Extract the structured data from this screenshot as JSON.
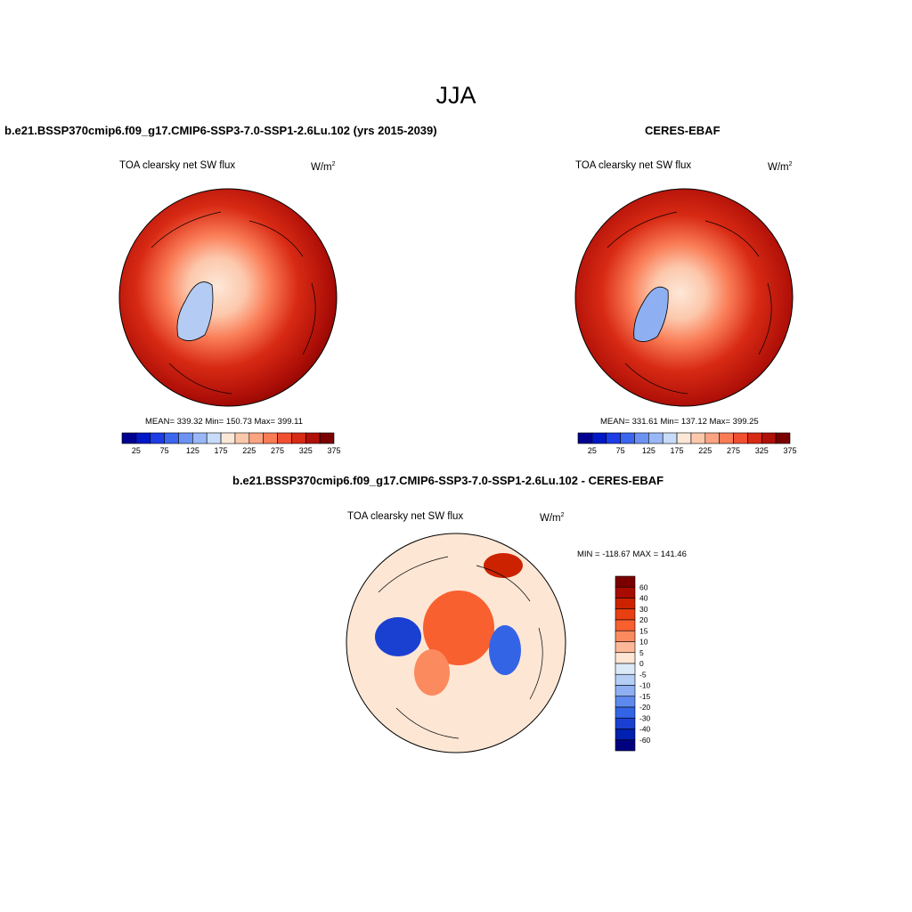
{
  "main_title": "JJA",
  "panels": [
    {
      "title": "b.e21.BSSP370cmip6.f09_g17.CMIP6-SSP3-7.0-SSP1-2.6Lu.102 (yrs 2015-2039)",
      "variable": "TOA clearsky net SW flux",
      "units": "W/m",
      "units_sup": "2",
      "stats": "MEAN= 339.32  Min= 150.73  Max= 399.11"
    },
    {
      "title": "CERES-EBAF",
      "variable": "TOA clearsky net SW flux",
      "units": "W/m",
      "units_sup": "2",
      "stats": "MEAN= 331.61  Min= 137.12  Max= 399.25"
    },
    {
      "title": "b.e21.BSSP370cmip6.f09_g17.CMIP6-SSP3-7.0-SSP1-2.6Lu.102 - CERES-EBAF",
      "variable": "TOA clearsky net SW flux",
      "units": "W/m",
      "units_sup": "2",
      "stats": "MIN = -118.67 MAX = 141.46"
    }
  ],
  "abs_colorbar": {
    "colors": [
      "#000090",
      "#0018c8",
      "#1c3ce6",
      "#3a66f0",
      "#6c92f4",
      "#9ab8f8",
      "#c8dcfa",
      "#fde8d8",
      "#fcc8ac",
      "#fca482",
      "#fa7c56",
      "#f05030",
      "#d82a14",
      "#b01008",
      "#7a0000"
    ],
    "labels": [
      "25",
      "75",
      "125",
      "175",
      "225",
      "275",
      "325",
      "375"
    ]
  },
  "diff_colorbar": {
    "colors": [
      "#7a0000",
      "#a80c00",
      "#cc2200",
      "#e84010",
      "#f86030",
      "#fb8a5e",
      "#fcb898",
      "#fde6d4",
      "#dceaf8",
      "#b4cef6",
      "#8eb0f2",
      "#5e8aee",
      "#3464e6",
      "#1a40d2",
      "#0020b0",
      "#000080"
    ],
    "labels": [
      "60",
      "40",
      "30",
      "20",
      "15",
      "10",
      "5",
      "0",
      "-5",
      "-10",
      "-15",
      "-20",
      "-30",
      "-40",
      "-60"
    ]
  }
}
